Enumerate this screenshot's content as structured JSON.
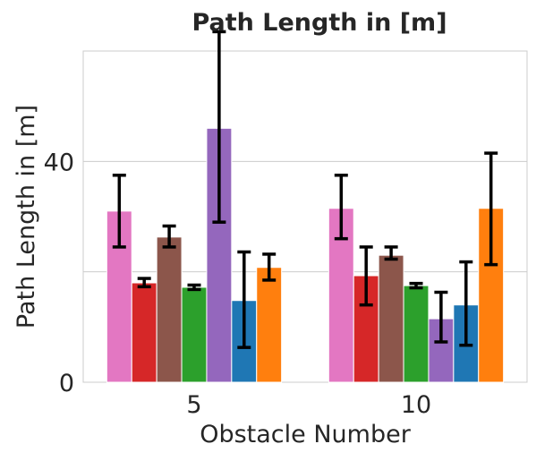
{
  "chart_data": {
    "type": "bar",
    "title": "Path Length in [m]",
    "xlabel": "Obstacle Number",
    "ylabel": "Path Length in [m]",
    "categories": [
      "5",
      "10"
    ],
    "ylim": [
      0,
      60
    ],
    "yticks": [
      0,
      40
    ],
    "grid_values": [
      0,
      20,
      40,
      60
    ],
    "grid": true,
    "series": [
      {
        "color": "#e377c2",
        "values": [
          31,
          31.5
        ],
        "err_low": [
          24.5,
          26
        ],
        "err_high": [
          37.5,
          37.5
        ]
      },
      {
        "color": "#d62728",
        "values": [
          18,
          19.3
        ],
        "err_low": [
          17.3,
          14
        ],
        "err_high": [
          18.8,
          24.5
        ]
      },
      {
        "color": "#8c564b",
        "values": [
          26.3,
          23
        ],
        "err_low": [
          24.5,
          22.3
        ],
        "err_high": [
          28.3,
          24.5
        ]
      },
      {
        "color": "#2ca02c",
        "values": [
          17.2,
          17.5
        ],
        "err_low": [
          16.8,
          17.1
        ],
        "err_high": [
          17.6,
          17.9
        ]
      },
      {
        "color": "#9467bd",
        "values": [
          46,
          11.5
        ],
        "err_low": [
          29,
          7.3
        ],
        "err_high": [
          63.5,
          16.3
        ]
      },
      {
        "color": "#1f77b4",
        "values": [
          14.8,
          14
        ],
        "err_low": [
          6.3,
          6.7
        ],
        "err_high": [
          23.6,
          21.8
        ]
      },
      {
        "color": "#ff7f0e",
        "values": [
          20.8,
          31.5
        ],
        "err_low": [
          18.5,
          21.3
        ],
        "err_high": [
          23.2,
          41.5
        ]
      }
    ]
  }
}
